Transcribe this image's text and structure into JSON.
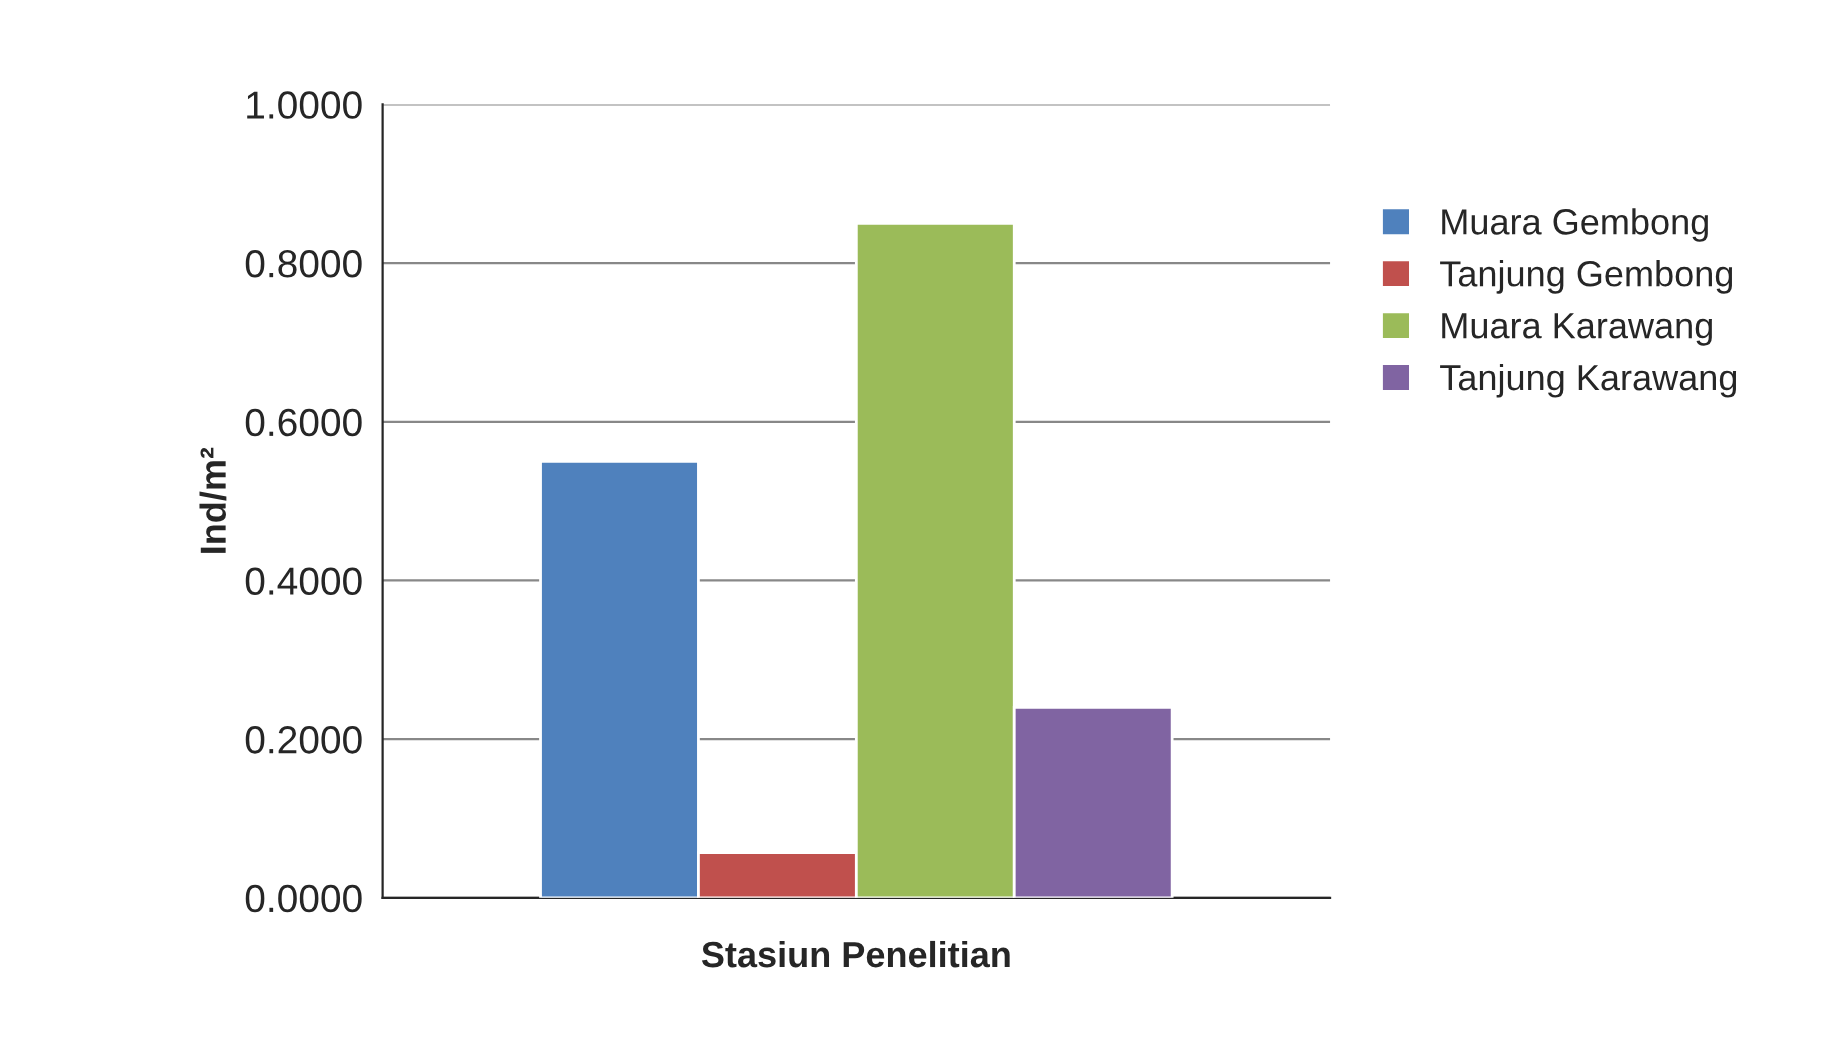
{
  "chart_data": {
    "type": "bar",
    "xlabel": "Stasiun Penelitian",
    "ylabel": "Ind/m²",
    "categories": [
      null
    ],
    "series": [
      {
        "name": "Muara Gembong",
        "color": "#4f81bd",
        "values": [
          0.55
        ]
      },
      {
        "name": "Tanjung Gembong",
        "color": "#c0504d",
        "values": [
          0.057
        ]
      },
      {
        "name": "Muara Karawang",
        "color": "#9bbb59",
        "values": [
          0.85
        ]
      },
      {
        "name": "Tanjung Karawang",
        "color": "#8064a2",
        "values": [
          0.24
        ]
      }
    ],
    "ylim": [
      0,
      1
    ],
    "yticks": [
      {
        "value": 0,
        "label": "0.0000"
      },
      {
        "value": 0.2,
        "label": "0.2000"
      },
      {
        "value": 0.4,
        "label": "0.4000"
      },
      {
        "value": 0.6,
        "label": "0.6000"
      },
      {
        "value": 0.8,
        "label": "0.8000"
      },
      {
        "value": 1,
        "label": "1.0000"
      }
    ],
    "grid": "y",
    "legend": "right"
  }
}
